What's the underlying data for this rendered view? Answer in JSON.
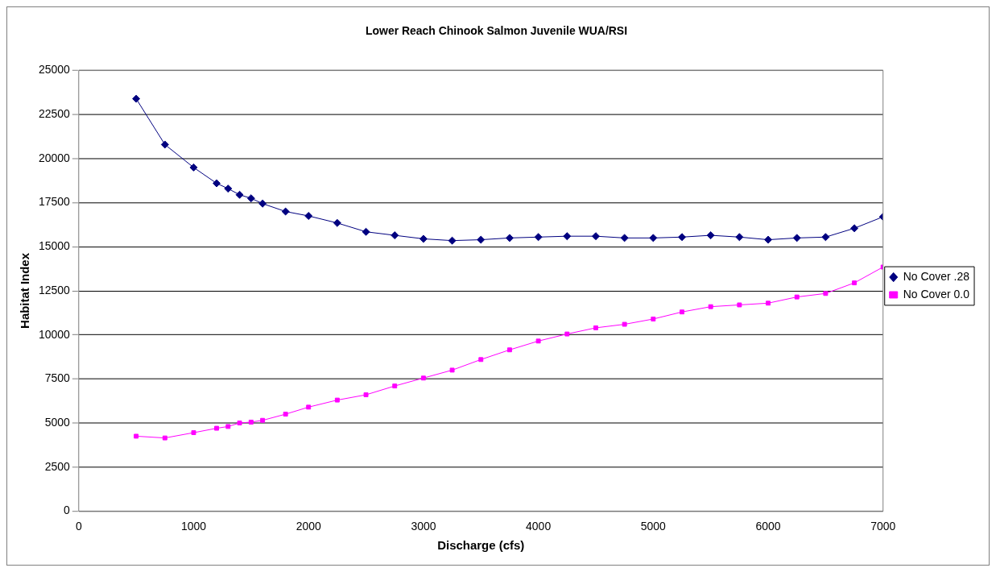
{
  "chart_data": {
    "type": "line",
    "title": "Lower Reach Chinook Salmon Juvenile WUA/RSI",
    "xlabel": "Discharge (cfs)",
    "ylabel": "Habitat Index",
    "x": [
      500,
      750,
      1000,
      1200,
      1300,
      1400,
      1500,
      1600,
      1800,
      2000,
      2250,
      2500,
      2750,
      3000,
      3250,
      3500,
      3750,
      4000,
      4250,
      4500,
      4750,
      5000,
      5250,
      5500,
      5750,
      6000,
      6250,
      6500,
      6750,
      7000
    ],
    "series": [
      {
        "name": "No Cover .28",
        "color": "#000080",
        "marker": "diamond",
        "values": [
          23400,
          20800,
          19500,
          18600,
          18300,
          17950,
          17750,
          17450,
          17000,
          16750,
          16350,
          15850,
          15650,
          15450,
          15350,
          15400,
          15500,
          15550,
          15600,
          15600,
          15500,
          15500,
          15550,
          15650,
          15550,
          15400,
          15500,
          15550,
          16050,
          16700
        ]
      },
      {
        "name": "No Cover 0.0",
        "color": "#ff00ff",
        "marker": "square",
        "values": [
          4250,
          4150,
          4450,
          4700,
          4800,
          5000,
          5050,
          5150,
          5500,
          5900,
          6300,
          6600,
          7100,
          7550,
          8000,
          8600,
          9150,
          9650,
          10050,
          10400,
          10600,
          10900,
          11300,
          11600,
          11700,
          11800,
          12150,
          12350,
          12950,
          13850
        ]
      }
    ],
    "xlim": [
      0,
      7000
    ],
    "xticks": [
      0,
      1000,
      2000,
      3000,
      4000,
      5000,
      6000,
      7000
    ],
    "ylim": [
      0,
      25000
    ],
    "yticks": [
      0,
      2500,
      5000,
      7500,
      10000,
      12500,
      15000,
      17500,
      20000,
      22500,
      25000
    ],
    "grid": "y",
    "legend": "right",
    "line_style": "solid"
  }
}
